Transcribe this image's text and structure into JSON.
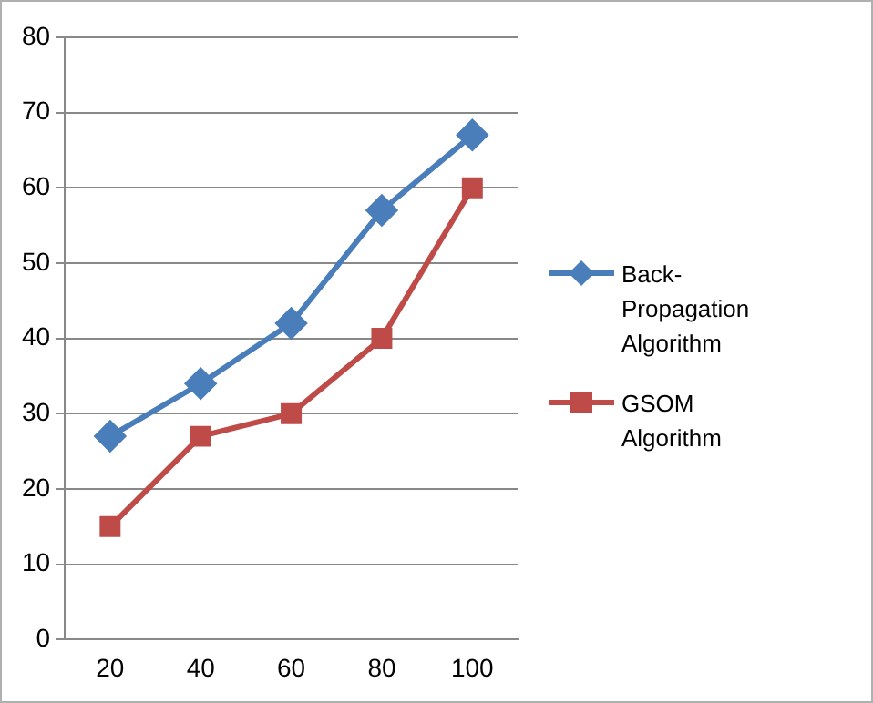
{
  "chart_data": {
    "type": "line",
    "categories": [
      "20",
      "40",
      "60",
      "80",
      "100"
    ],
    "series": [
      {
        "name": "Back-Propagation Algorithm",
        "color": "#4a7ebb",
        "marker": "diamond",
        "values": [
          27,
          34,
          42,
          57,
          67
        ]
      },
      {
        "name": "GSOM Algorithm",
        "color": "#be4b48",
        "marker": "square",
        "values": [
          15,
          27,
          30,
          40,
          60
        ]
      }
    ],
    "ylim": [
      0,
      80
    ],
    "yticks": [
      0,
      10,
      20,
      30,
      40,
      50,
      60,
      70,
      80
    ],
    "grid": "y",
    "legend": "right"
  }
}
